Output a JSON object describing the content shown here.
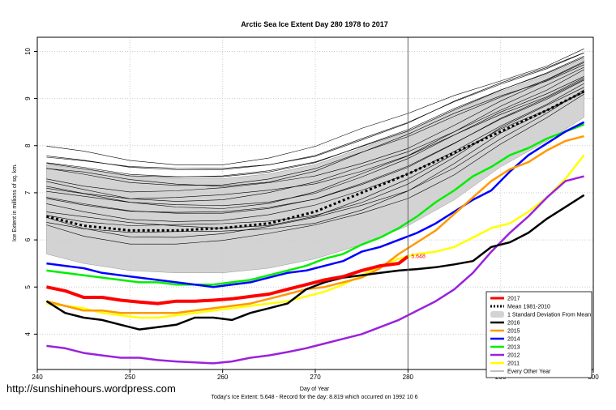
{
  "chart_data": {
    "type": "line",
    "title": "Arctic Sea Ice Extent Day 280 1978 to 2017",
    "xlabel": "Day of Year",
    "ylabel": "Ice Extent in millions of sq. km.",
    "xlim": [
      240,
      300
    ],
    "ylim": [
      3.25,
      10.3
    ],
    "x_ticks": [
      240,
      250,
      260,
      270,
      280,
      290,
      300
    ],
    "y_ticks": [
      4,
      5,
      6,
      7,
      8,
      9,
      10
    ],
    "grid": true,
    "marker_day": 280,
    "today_value_label": "5.648",
    "footer": "Today's Ice Extent: 5.648  -  Record for the day: 8.819 which occurred on 1992 10 6",
    "watermark": "http://sunshinehours.wordpress.com",
    "legend_position": "bottom-right",
    "std_band": {
      "x": [
        241,
        245,
        250,
        255,
        260,
        265,
        270,
        275,
        280,
        285,
        290,
        295,
        299
      ],
      "upper": [
        7.6,
        7.5,
        7.35,
        7.3,
        7.3,
        7.4,
        7.6,
        7.95,
        8.3,
        8.75,
        9.15,
        9.5,
        9.85
      ],
      "lower": [
        5.7,
        5.5,
        5.35,
        5.3,
        5.3,
        5.4,
        5.6,
        5.9,
        6.3,
        6.85,
        7.55,
        8.1,
        8.6
      ]
    },
    "series": [
      {
        "name": "2017",
        "color": "#ff0000",
        "width": 4,
        "x": [
          241,
          243,
          245,
          247,
          249,
          251,
          253,
          255,
          257,
          259,
          261,
          263,
          265,
          267,
          269,
          271,
          273,
          275,
          277,
          279,
          280
        ],
        "values": [
          5.0,
          4.92,
          4.78,
          4.78,
          4.72,
          4.68,
          4.65,
          4.7,
          4.7,
          4.72,
          4.75,
          4.8,
          4.85,
          4.95,
          5.05,
          5.15,
          5.22,
          5.35,
          5.45,
          5.5,
          5.648
        ]
      },
      {
        "name": "Mean 1981-2010",
        "color": "#000000",
        "width": 3,
        "dash": "3,3",
        "x": [
          241,
          245,
          250,
          255,
          260,
          265,
          270,
          275,
          280,
          285,
          290,
          295,
          299
        ],
        "values": [
          6.5,
          6.3,
          6.2,
          6.2,
          6.25,
          6.35,
          6.6,
          7.0,
          7.4,
          7.85,
          8.3,
          8.75,
          9.15
        ]
      },
      {
        "name": "2016",
        "color": "#000000",
        "width": 2.5,
        "x": [
          241,
          243,
          245,
          247,
          249,
          251,
          253,
          255,
          257,
          259,
          261,
          263,
          265,
          267,
          269,
          271,
          273,
          275,
          277,
          279,
          281,
          283,
          285,
          287,
          289,
          291,
          293,
          295,
          297,
          299
        ],
        "values": [
          4.7,
          4.45,
          4.35,
          4.3,
          4.2,
          4.1,
          4.15,
          4.2,
          4.35,
          4.35,
          4.3,
          4.45,
          4.55,
          4.65,
          4.95,
          5.1,
          5.2,
          5.25,
          5.3,
          5.35,
          5.38,
          5.42,
          5.48,
          5.55,
          5.85,
          5.95,
          6.15,
          6.45,
          6.7,
          6.95
        ]
      },
      {
        "name": "2015",
        "color": "#ff9900",
        "width": 2.5,
        "x": [
          241,
          243,
          245,
          247,
          249,
          251,
          253,
          255,
          257,
          259,
          261,
          263,
          265,
          267,
          269,
          271,
          273,
          275,
          277,
          279,
          281,
          283,
          285,
          287,
          289,
          291,
          293,
          295,
          297,
          299
        ],
        "values": [
          4.7,
          4.6,
          4.5,
          4.5,
          4.45,
          4.45,
          4.45,
          4.45,
          4.5,
          4.55,
          4.6,
          4.65,
          4.75,
          4.85,
          4.95,
          5.0,
          5.1,
          5.2,
          5.4,
          5.7,
          5.95,
          6.2,
          6.55,
          6.9,
          7.25,
          7.5,
          7.65,
          7.9,
          8.1,
          8.2
        ]
      },
      {
        "name": "2014",
        "color": "#0000ff",
        "width": 2.5,
        "x": [
          241,
          243,
          245,
          247,
          249,
          251,
          253,
          255,
          257,
          259,
          261,
          263,
          265,
          267,
          269,
          271,
          273,
          275,
          277,
          279,
          281,
          283,
          285,
          287,
          289,
          291,
          293,
          295,
          297,
          299
        ],
        "values": [
          5.5,
          5.45,
          5.4,
          5.3,
          5.25,
          5.2,
          5.15,
          5.1,
          5.05,
          5.0,
          5.05,
          5.1,
          5.2,
          5.3,
          5.35,
          5.45,
          5.55,
          5.75,
          5.85,
          6.0,
          6.15,
          6.35,
          6.6,
          6.85,
          7.05,
          7.45,
          7.8,
          8.05,
          8.3,
          8.5
        ]
      },
      {
        "name": "2013",
        "color": "#00ee00",
        "width": 2.5,
        "x": [
          241,
          243,
          245,
          247,
          249,
          251,
          253,
          255,
          257,
          259,
          261,
          263,
          265,
          267,
          269,
          271,
          273,
          275,
          277,
          279,
          281,
          283,
          285,
          287,
          289,
          291,
          293,
          295,
          297,
          299
        ],
        "values": [
          5.35,
          5.3,
          5.25,
          5.2,
          5.15,
          5.1,
          5.1,
          5.05,
          5.05,
          5.05,
          5.1,
          5.15,
          5.25,
          5.35,
          5.45,
          5.6,
          5.7,
          5.9,
          6.05,
          6.25,
          6.5,
          6.8,
          7.05,
          7.35,
          7.55,
          7.8,
          7.95,
          8.15,
          8.3,
          8.45
        ]
      },
      {
        "name": "2012",
        "color": "#9922dd",
        "width": 2.5,
        "x": [
          241,
          243,
          245,
          247,
          249,
          251,
          253,
          255,
          257,
          259,
          261,
          263,
          265,
          267,
          269,
          271,
          273,
          275,
          277,
          279,
          281,
          283,
          285,
          287,
          289,
          291,
          293,
          295,
          297,
          299
        ],
        "values": [
          3.75,
          3.7,
          3.6,
          3.55,
          3.5,
          3.5,
          3.45,
          3.42,
          3.4,
          3.38,
          3.42,
          3.5,
          3.55,
          3.62,
          3.7,
          3.8,
          3.9,
          4.0,
          4.15,
          4.3,
          4.5,
          4.7,
          4.95,
          5.3,
          5.75,
          6.15,
          6.5,
          6.9,
          7.25,
          7.35
        ]
      },
      {
        "name": "2011",
        "color": "#ffff00",
        "width": 2.5,
        "x": [
          241,
          243,
          245,
          247,
          249,
          251,
          253,
          255,
          257,
          259,
          261,
          263,
          265,
          267,
          269,
          271,
          273,
          275,
          277,
          279,
          281,
          283,
          285,
          287,
          289,
          291,
          293,
          295,
          297,
          299
        ],
        "values": [
          4.65,
          4.6,
          4.55,
          4.45,
          4.4,
          4.35,
          4.35,
          4.4,
          4.45,
          4.5,
          4.55,
          4.6,
          4.65,
          4.7,
          4.8,
          4.9,
          5.05,
          5.25,
          5.45,
          5.6,
          5.7,
          5.75,
          5.85,
          6.05,
          6.25,
          6.35,
          6.6,
          6.9,
          7.3,
          7.8
        ]
      }
    ],
    "legend": [
      "2017",
      "Mean 1981-2010",
      "1 Standard Deviation From Mean",
      "2016",
      "2015",
      "2014",
      "2013",
      "2012",
      "2011",
      "Every Other Year"
    ]
  }
}
